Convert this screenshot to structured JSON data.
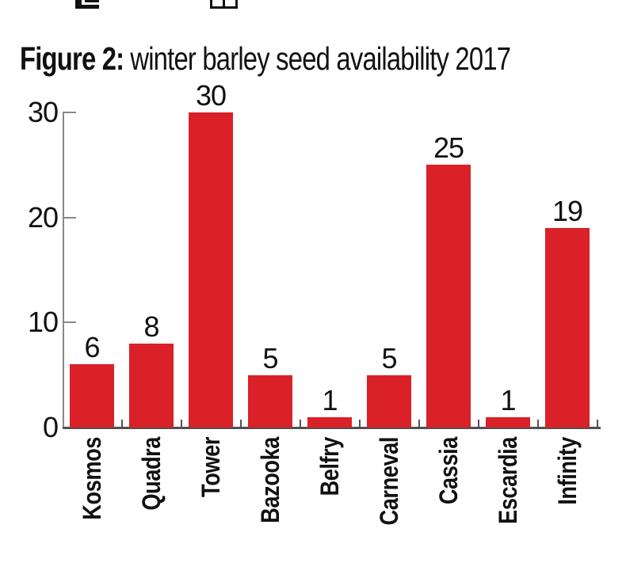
{
  "top_icons": {
    "icon1_name": "clipped-flipchart-icon",
    "icon2_name": "clipped-table-icon"
  },
  "figure": {
    "title_prefix": "Figure 2:",
    "title_rest": "winter barley seed availability 2017"
  },
  "chart_data": {
    "type": "bar",
    "title": "Figure 2: winter barley seed availability 2017",
    "categories": [
      "Kosmos",
      "Quadra",
      "Tower",
      "Bazooka",
      "Belfry",
      "Carneval",
      "Cassia",
      "Escardia",
      "Infinity"
    ],
    "values": [
      6,
      8,
      30,
      5,
      1,
      5,
      25,
      1,
      19
    ],
    "show_value_labels": true,
    "xlabel": "",
    "ylabel": "",
    "ylim": [
      0,
      30
    ],
    "yticks": [
      0,
      10,
      20,
      30
    ],
    "grid": false,
    "legend": "none",
    "orientation": "vertical",
    "category_label_rotation": -90,
    "colors": {
      "bar": "#d92127",
      "axis": "#87888a",
      "baseline": "#515154",
      "text": "#111111"
    }
  }
}
